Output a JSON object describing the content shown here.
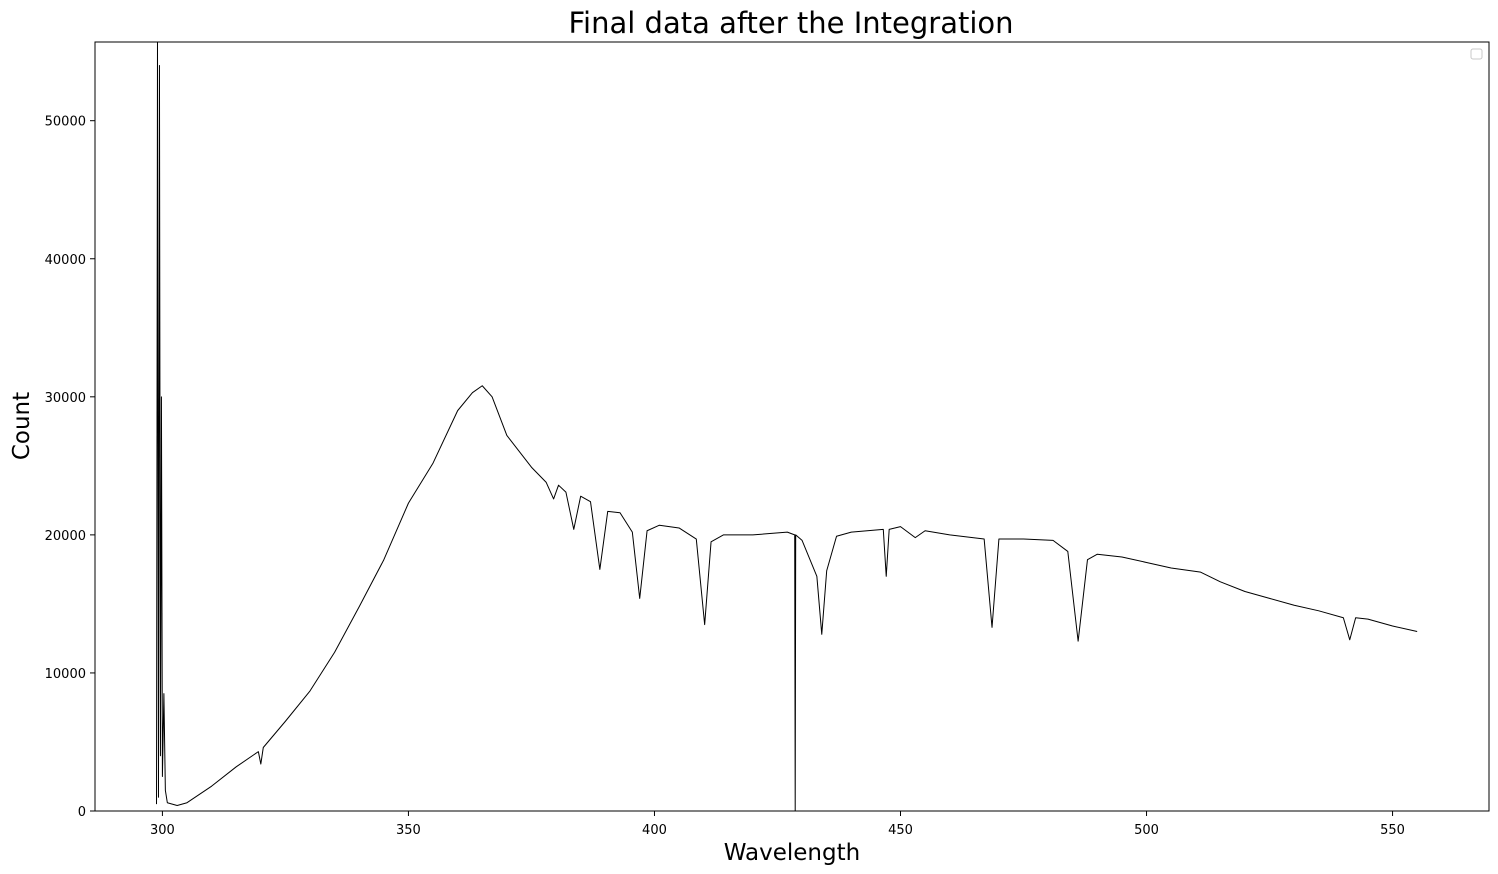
{
  "chart_data": {
    "type": "line",
    "title": "Final data after the Integration",
    "xlabel": "Wavelength",
    "ylabel": "Count",
    "xlim": [
      286.3,
      569.6
    ],
    "ylim": [
      0,
      55700
    ],
    "xticks": [
      300,
      350,
      400,
      450,
      500,
      550
    ],
    "yticks": [
      0,
      10000,
      20000,
      30000,
      40000,
      50000
    ],
    "xtick_labels": [
      "300",
      "350",
      "400",
      "450",
      "500",
      "550"
    ],
    "ytick_labels": [
      "0",
      "10000",
      "20000",
      "30000",
      "40000",
      "50000"
    ],
    "grid": false,
    "legend": {
      "location": "upper right",
      "entries": []
    },
    "series": [
      {
        "color": "#000000",
        "x": [
          298.8,
          299.0,
          299.2,
          299.4,
          299.6,
          299.8,
          300.0,
          300.3,
          300.6,
          301.0,
          302.0,
          303.0,
          305.0,
          310.0,
          315.0,
          319.5,
          320.0,
          320.5,
          325.0,
          330.0,
          335.0,
          340.0,
          345.0,
          350.0,
          355.0,
          360.0,
          363.0,
          365.0,
          367.0,
          370.0,
          375.0,
          378.0,
          379.5,
          380.5,
          382.0,
          383.6,
          385.0,
          387.0,
          388.9,
          390.5,
          393.0,
          395.5,
          397.0,
          398.5,
          401.0,
          405.0,
          408.5,
          410.2,
          411.5,
          414.0,
          420.0,
          427.0,
          428.5,
          428.6,
          428.7,
          430.0,
          433.0,
          434.0,
          435.0,
          437.0,
          440.0,
          446.5,
          447.1,
          447.7,
          450.0,
          453.0,
          455.0,
          460.0,
          467.0,
          468.6,
          470.0,
          475.0,
          481.0,
          484.0,
          486.1,
          488.0,
          490.0,
          495.0,
          500.0,
          505.0,
          511.0,
          515.0,
          520.0,
          525.0,
          530.0,
          535.0,
          540.0,
          541.3,
          542.5,
          545.0,
          550.0,
          555.0
        ],
        "y": [
          500,
          55700,
          1000,
          54000,
          4000,
          30000,
          2500,
          8500,
          1500,
          600,
          500,
          400,
          600,
          1800,
          3200,
          4300,
          3400,
          4600,
          6500,
          8700,
          11500,
          14800,
          18200,
          22300,
          25200,
          29000,
          30300,
          30800,
          30000,
          27200,
          24900,
          23800,
          22600,
          23600,
          23100,
          20400,
          22800,
          22400,
          17500,
          21700,
          21600,
          20200,
          15400,
          20300,
          20700,
          20500,
          19700,
          13500,
          19500,
          20000,
          20000,
          20200,
          20000,
          0,
          20000,
          19600,
          17000,
          12800,
          17400,
          19900,
          20200,
          20400,
          17000,
          20400,
          20600,
          19800,
          20300,
          20000,
          19700,
          13300,
          19700,
          19700,
          19600,
          18800,
          12300,
          18200,
          18600,
          18400,
          18000,
          17600,
          17300,
          16600,
          15900,
          15400,
          14900,
          14500,
          14000,
          12400,
          14000,
          13900,
          13400,
          13000
        ]
      }
    ]
  }
}
